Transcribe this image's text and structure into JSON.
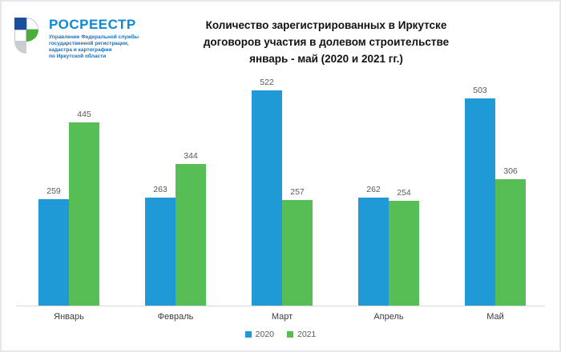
{
  "logo": {
    "brand": "РОСРЕЕСТР",
    "brand_color": "#1089d3",
    "subtitle_lines": [
      "Управление Федеральной службы",
      "государственной регистрации,",
      "кадастра и картографии",
      "по Иркутской области"
    ],
    "subtitle_color": "#1c6fba",
    "emblem_colors": {
      "blue": "#1d4e9c",
      "green": "#4aaf35",
      "gray": "#c9ced4"
    }
  },
  "chart_data": {
    "type": "bar",
    "title_lines": [
      "Количество зарегистрированных в Иркутске",
      "договоров участия в долевом строительстве",
      "январь - май (2020 и 2021 гг.)"
    ],
    "categories": [
      "Январь",
      "Февраль",
      "Март",
      "Апрель",
      "Май"
    ],
    "series": [
      {
        "name": "2020",
        "color": "#1f9ad6",
        "values": [
          259,
          263,
          522,
          262,
          503
        ]
      },
      {
        "name": "2021",
        "color": "#57bd55",
        "values": [
          445,
          344,
          257,
          254,
          306
        ]
      }
    ],
    "ylim": [
      0,
      528
    ],
    "grid": false,
    "legend_position": "bottom",
    "value_labels": true,
    "axis_line_color": "#d9d9d9",
    "value_label_color": "#595959"
  }
}
